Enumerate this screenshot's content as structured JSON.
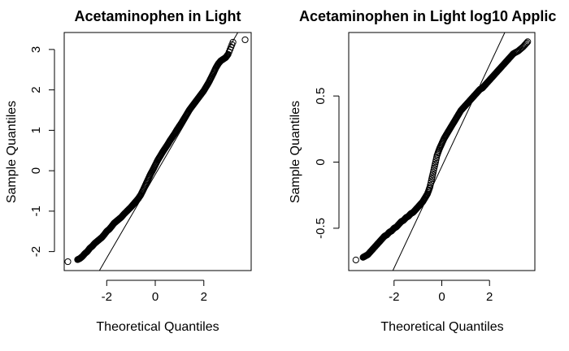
{
  "chart_data": [
    {
      "type": "scatter",
      "title": "Acetaminophen in Light",
      "xlabel": "Theoretical Quantiles",
      "ylabel": "Sample Quantiles",
      "xlim": [
        -3.75,
        3.95
      ],
      "ylim": [
        -2.47,
        3.42
      ],
      "xticks": [
        -2,
        0,
        2
      ],
      "yticks": [
        -2,
        -1,
        0,
        1,
        2,
        3
      ],
      "reference_line": {
        "x": [
          -2.3,
          3.4
        ],
        "y": [
          -2.47,
          3.42
        ]
      },
      "grid": false,
      "x": [
        -3.6,
        -3.2,
        -3.1,
        -3.0,
        -2.9,
        -2.8,
        -2.7,
        -2.6,
        -2.5,
        -2.4,
        -2.3,
        -2.2,
        -2.1,
        -2.0,
        -1.9,
        -1.8,
        -1.7,
        -1.6,
        -1.5,
        -1.4,
        -1.3,
        -1.2,
        -1.1,
        -1.0,
        -0.9,
        -0.8,
        -0.7,
        -0.6,
        -0.5,
        -0.4,
        -0.3,
        -0.2,
        -0.1,
        0.0,
        0.1,
        0.2,
        0.3,
        0.4,
        0.5,
        0.6,
        0.7,
        0.8,
        0.9,
        1.0,
        1.1,
        1.2,
        1.3,
        1.4,
        1.5,
        1.6,
        1.7,
        1.8,
        1.9,
        2.0,
        2.1,
        2.2,
        2.3,
        2.4,
        2.5,
        2.6,
        2.7,
        2.8,
        2.9,
        3.0,
        3.2,
        3.7
      ],
      "y": [
        -2.25,
        -2.2,
        -2.17,
        -2.12,
        -2.05,
        -2.0,
        -1.92,
        -1.87,
        -1.8,
        -1.75,
        -1.7,
        -1.65,
        -1.58,
        -1.5,
        -1.45,
        -1.38,
        -1.3,
        -1.25,
        -1.2,
        -1.15,
        -1.08,
        -1.02,
        -0.96,
        -0.9,
        -0.83,
        -0.76,
        -0.69,
        -0.6,
        -0.48,
        -0.35,
        -0.22,
        -0.09,
        0.02,
        0.14,
        0.26,
        0.36,
        0.46,
        0.55,
        0.64,
        0.74,
        0.83,
        0.92,
        1.02,
        1.11,
        1.2,
        1.3,
        1.4,
        1.5,
        1.58,
        1.66,
        1.74,
        1.82,
        1.9,
        1.98,
        2.08,
        2.18,
        2.3,
        2.42,
        2.55,
        2.65,
        2.72,
        2.76,
        2.8,
        2.88,
        3.18,
        3.24
      ]
    },
    {
      "type": "scatter",
      "title": "Acetaminophen in Light log10 Applic",
      "xlabel": "Theoretical Quantiles",
      "ylabel": "Sample Quantiles",
      "xlim": [
        -3.9,
        3.9
      ],
      "ylim": [
        -0.82,
        0.98
      ],
      "xticks": [
        -2,
        0,
        2
      ],
      "yticks": [
        -0.5,
        0.0,
        0.5
      ],
      "reference_line": {
        "x": [
          -2.05,
          2.64
        ],
        "y": [
          -0.82,
          0.98
        ]
      },
      "grid": false,
      "x": [
        -3.6,
        -3.3,
        -3.2,
        -3.1,
        -3.0,
        -2.9,
        -2.8,
        -2.7,
        -2.6,
        -2.5,
        -2.4,
        -2.3,
        -2.2,
        -2.1,
        -2.0,
        -1.9,
        -1.8,
        -1.7,
        -1.6,
        -1.5,
        -1.4,
        -1.3,
        -1.2,
        -1.1,
        -1.0,
        -0.9,
        -0.8,
        -0.7,
        -0.6,
        -0.5,
        -0.4,
        -0.3,
        -0.2,
        -0.1,
        0.0,
        0.1,
        0.2,
        0.3,
        0.4,
        0.5,
        0.6,
        0.7,
        0.8,
        0.9,
        1.0,
        1.1,
        1.2,
        1.3,
        1.4,
        1.5,
        1.6,
        1.7,
        1.8,
        1.9,
        2.0,
        2.1,
        2.2,
        2.3,
        2.4,
        2.5,
        2.6,
        2.7,
        2.8,
        2.9,
        3.0,
        3.2,
        3.4,
        3.6
      ],
      "y": [
        -0.74,
        -0.72,
        -0.71,
        -0.7,
        -0.68,
        -0.66,
        -0.64,
        -0.62,
        -0.6,
        -0.58,
        -0.56,
        -0.55,
        -0.53,
        -0.52,
        -0.5,
        -0.49,
        -0.47,
        -0.45,
        -0.44,
        -0.42,
        -0.41,
        -0.39,
        -0.38,
        -0.36,
        -0.34,
        -0.32,
        -0.3,
        -0.27,
        -0.24,
        -0.19,
        -0.11,
        -0.03,
        0.05,
        0.1,
        0.14,
        0.18,
        0.21,
        0.24,
        0.27,
        0.3,
        0.33,
        0.36,
        0.39,
        0.41,
        0.43,
        0.45,
        0.47,
        0.49,
        0.51,
        0.53,
        0.55,
        0.56,
        0.58,
        0.6,
        0.62,
        0.64,
        0.66,
        0.68,
        0.7,
        0.72,
        0.74,
        0.76,
        0.78,
        0.8,
        0.82,
        0.84,
        0.87,
        0.91
      ]
    }
  ]
}
